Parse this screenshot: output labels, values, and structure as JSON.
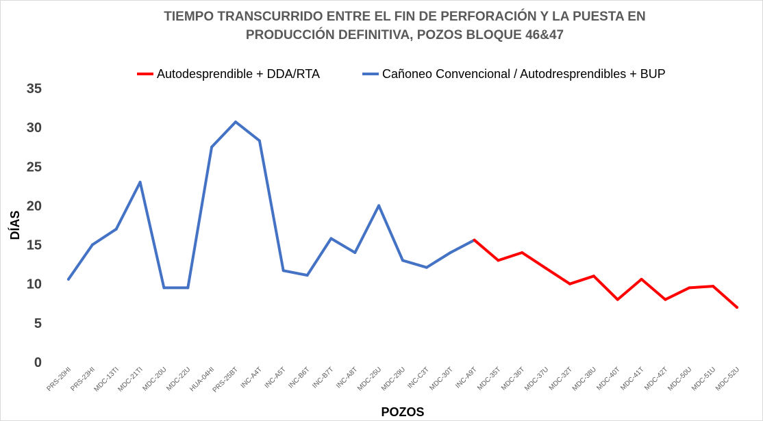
{
  "chart_data": {
    "type": "line",
    "title_lines": [
      "TIEMPO TRANSCURRIDO ENTRE EL FIN DE PERFORACIÓN Y LA PUESTA EN",
      "PRODUCCIÓN DEFINITIVA, POZOS BLOQUE 46&47"
    ],
    "xlabel": "POZOS",
    "ylabel": "DÍAS",
    "ylim": [
      0,
      35
    ],
    "yticks": [
      0,
      5,
      10,
      15,
      20,
      25,
      30,
      35
    ],
    "grid": false,
    "legend_position": "top",
    "categories": [
      "PRS-20HI",
      "PRS-23HI",
      "MDC-13TI",
      "MDC-21TI",
      "MDC-20U",
      "MDC-22U",
      "HUA-04HI",
      "PRS-25BT",
      "INC-A4T",
      "INC-A5T",
      "INC-B6T",
      "INC-B7T",
      "INC-A8T",
      "MDC-25U",
      "MDC-29U",
      "INC-C3T",
      "MDC-30T",
      "INC-A9T",
      "MDC-35T",
      "MDC-36T",
      "MDC-37U",
      "MDC-32T",
      "MDC-38U",
      "MDC-40T",
      "MDC-41T",
      "MDC-42T",
      "MDC-50U",
      "MDC-51U",
      "MDC-52U"
    ],
    "series": [
      {
        "name": "Autodesprendible + DDA/RTA",
        "color": "#ff0000",
        "values": [
          null,
          null,
          null,
          null,
          null,
          null,
          null,
          null,
          null,
          null,
          null,
          null,
          null,
          null,
          null,
          null,
          null,
          15.6,
          13.0,
          14.0,
          12.0,
          10.0,
          11.0,
          8.0,
          10.6,
          8.0,
          9.5,
          9.7,
          7.0
        ]
      },
      {
        "name": "Cañoneo Convencional / Autodresprendibles + BUP",
        "color": "#4472c4",
        "values": [
          10.6,
          15.0,
          17.0,
          23.0,
          9.5,
          9.5,
          27.5,
          30.7,
          28.3,
          11.7,
          11.1,
          15.8,
          14.0,
          20.0,
          13.0,
          12.1,
          14.0,
          15.6,
          null,
          null,
          null,
          null,
          null,
          null,
          null,
          null,
          null,
          null,
          null
        ]
      }
    ]
  }
}
